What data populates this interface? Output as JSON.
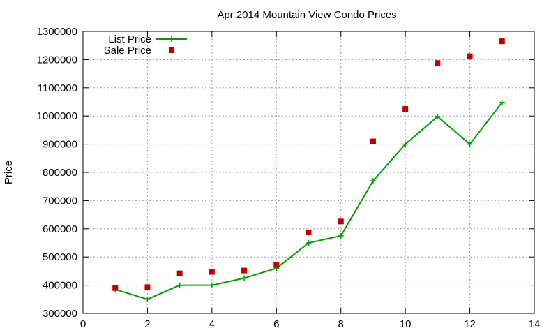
{
  "chart_data": {
    "type": "line",
    "title": "Apr 2014 Mountain View Condo Prices",
    "xlabel": "",
    "ylabel": "Price",
    "xlim": [
      0,
      14
    ],
    "ylim": [
      300000,
      1300000
    ],
    "x_ticks": [
      0,
      2,
      4,
      6,
      8,
      10,
      12,
      14
    ],
    "y_ticks": [
      300000,
      400000,
      500000,
      600000,
      700000,
      800000,
      900000,
      1000000,
      1100000,
      1200000,
      1300000
    ],
    "grid": true,
    "legend_position": "top-left",
    "series": [
      {
        "name": "List Price",
        "kind": "linespoints",
        "color": "#009e00",
        "x": [
          1,
          2,
          3,
          4,
          5,
          6,
          7,
          8,
          9,
          10,
          11,
          12,
          13
        ],
        "values": [
          385000,
          350000,
          400000,
          400000,
          425000,
          460000,
          550000,
          575000,
          770000,
          900000,
          998000,
          900000,
          1048000
        ]
      },
      {
        "name": "Sale Price",
        "kind": "points",
        "color": "#c00000",
        "x": [
          1,
          2,
          3,
          4,
          5,
          6,
          7,
          8,
          9,
          10,
          11,
          12,
          13
        ],
        "values": [
          390000,
          393000,
          442000,
          447000,
          452000,
          472000,
          587000,
          626000,
          910000,
          1025000,
          1188000,
          1212000,
          1265000
        ]
      }
    ]
  }
}
